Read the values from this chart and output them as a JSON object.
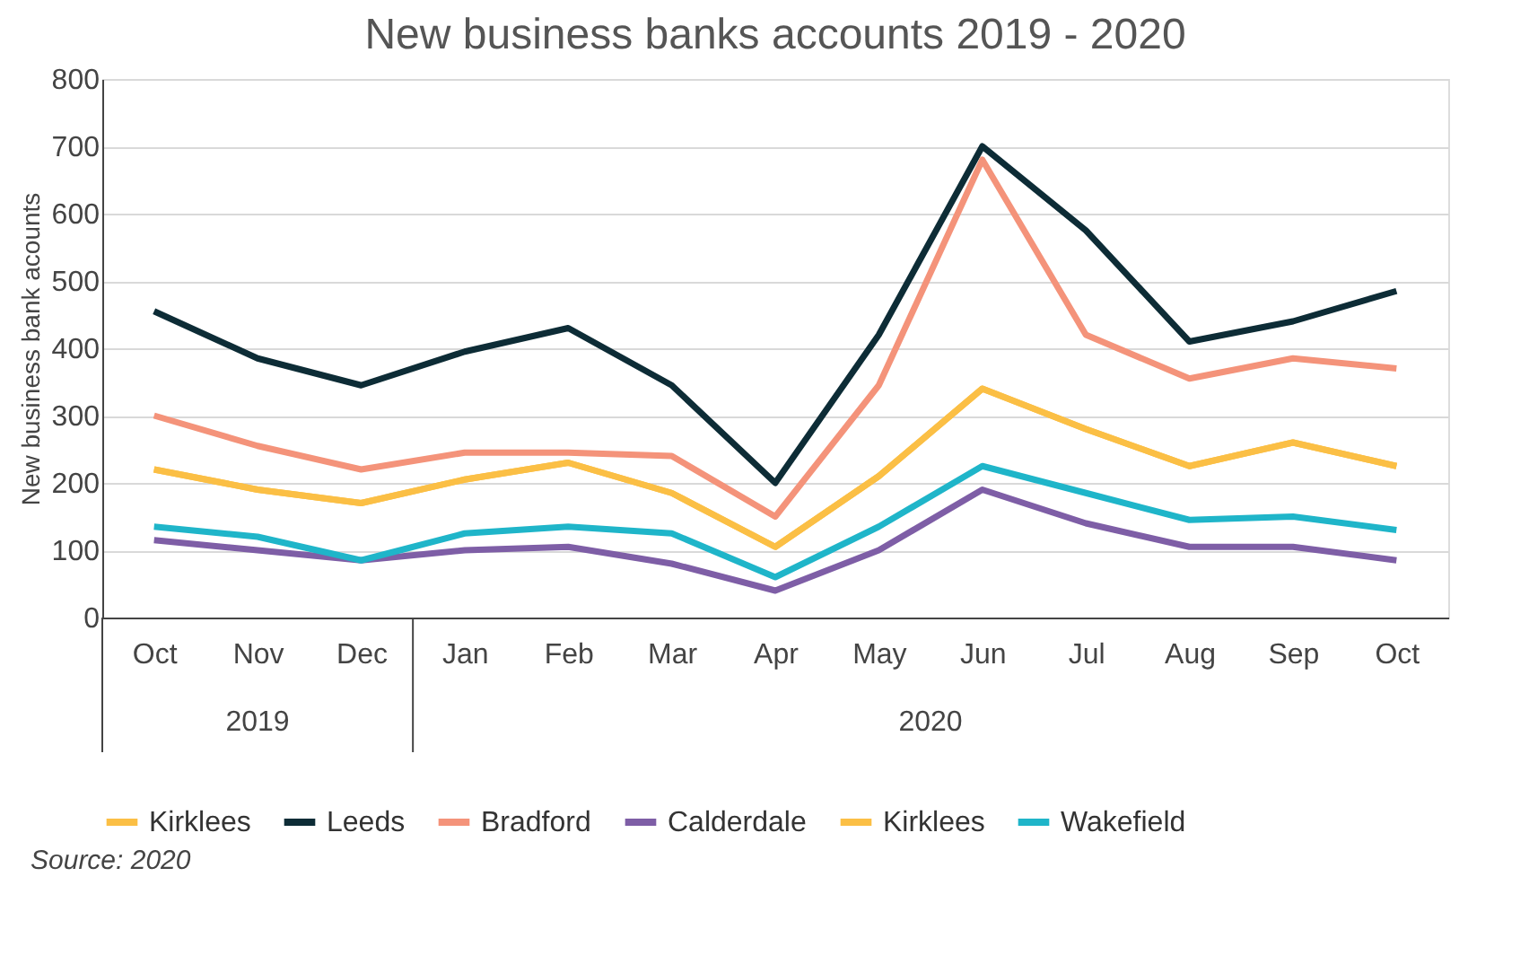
{
  "chart_data": {
    "type": "line",
    "title": "New business banks accounts 2019 - 2020",
    "ylabel": "New business bank acounts",
    "categories": [
      "Oct",
      "Nov",
      "Dec",
      "Jan",
      "Feb",
      "Mar",
      "Apr",
      "May",
      "Jun",
      "Jul",
      "Aug",
      "Sep",
      "Oct"
    ],
    "series": [
      {
        "name": "Kirklees",
        "color": "#fbbf45",
        "values": [
          220,
          190,
          170,
          205,
          230,
          185,
          105,
          210,
          340,
          280,
          225,
          260,
          225
        ]
      },
      {
        "name": "Leeds",
        "color": "#0d2c36",
        "values": [
          455,
          385,
          345,
          395,
          430,
          345,
          200,
          420,
          700,
          575,
          410,
          440,
          485
        ]
      },
      {
        "name": "Bradford",
        "color": "#f4937a",
        "values": [
          300,
          255,
          220,
          245,
          245,
          240,
          150,
          345,
          680,
          420,
          355,
          385,
          370
        ]
      },
      {
        "name": "Calderdale",
        "color": "#7e5ea6",
        "values": [
          115,
          100,
          85,
          100,
          105,
          80,
          40,
          100,
          190,
          140,
          105,
          105,
          85
        ]
      },
      {
        "name": "Kirklees",
        "color": "#fbbf45",
        "values": [
          220,
          190,
          170,
          205,
          230,
          185,
          105,
          210,
          340,
          280,
          225,
          260,
          225
        ]
      },
      {
        "name": "Wakefield",
        "color": "#1fb5c9",
        "values": [
          135,
          120,
          85,
          125,
          135,
          125,
          60,
          135,
          225,
          185,
          145,
          150,
          130
        ]
      }
    ],
    "ylim": [
      0,
      800
    ],
    "yticks": [
      0,
      100,
      200,
      300,
      400,
      500,
      600,
      700,
      800
    ],
    "grid": "y",
    "legend": "bottom",
    "annotations": [
      "2019",
      "2020",
      "Source: 2020"
    ]
  }
}
